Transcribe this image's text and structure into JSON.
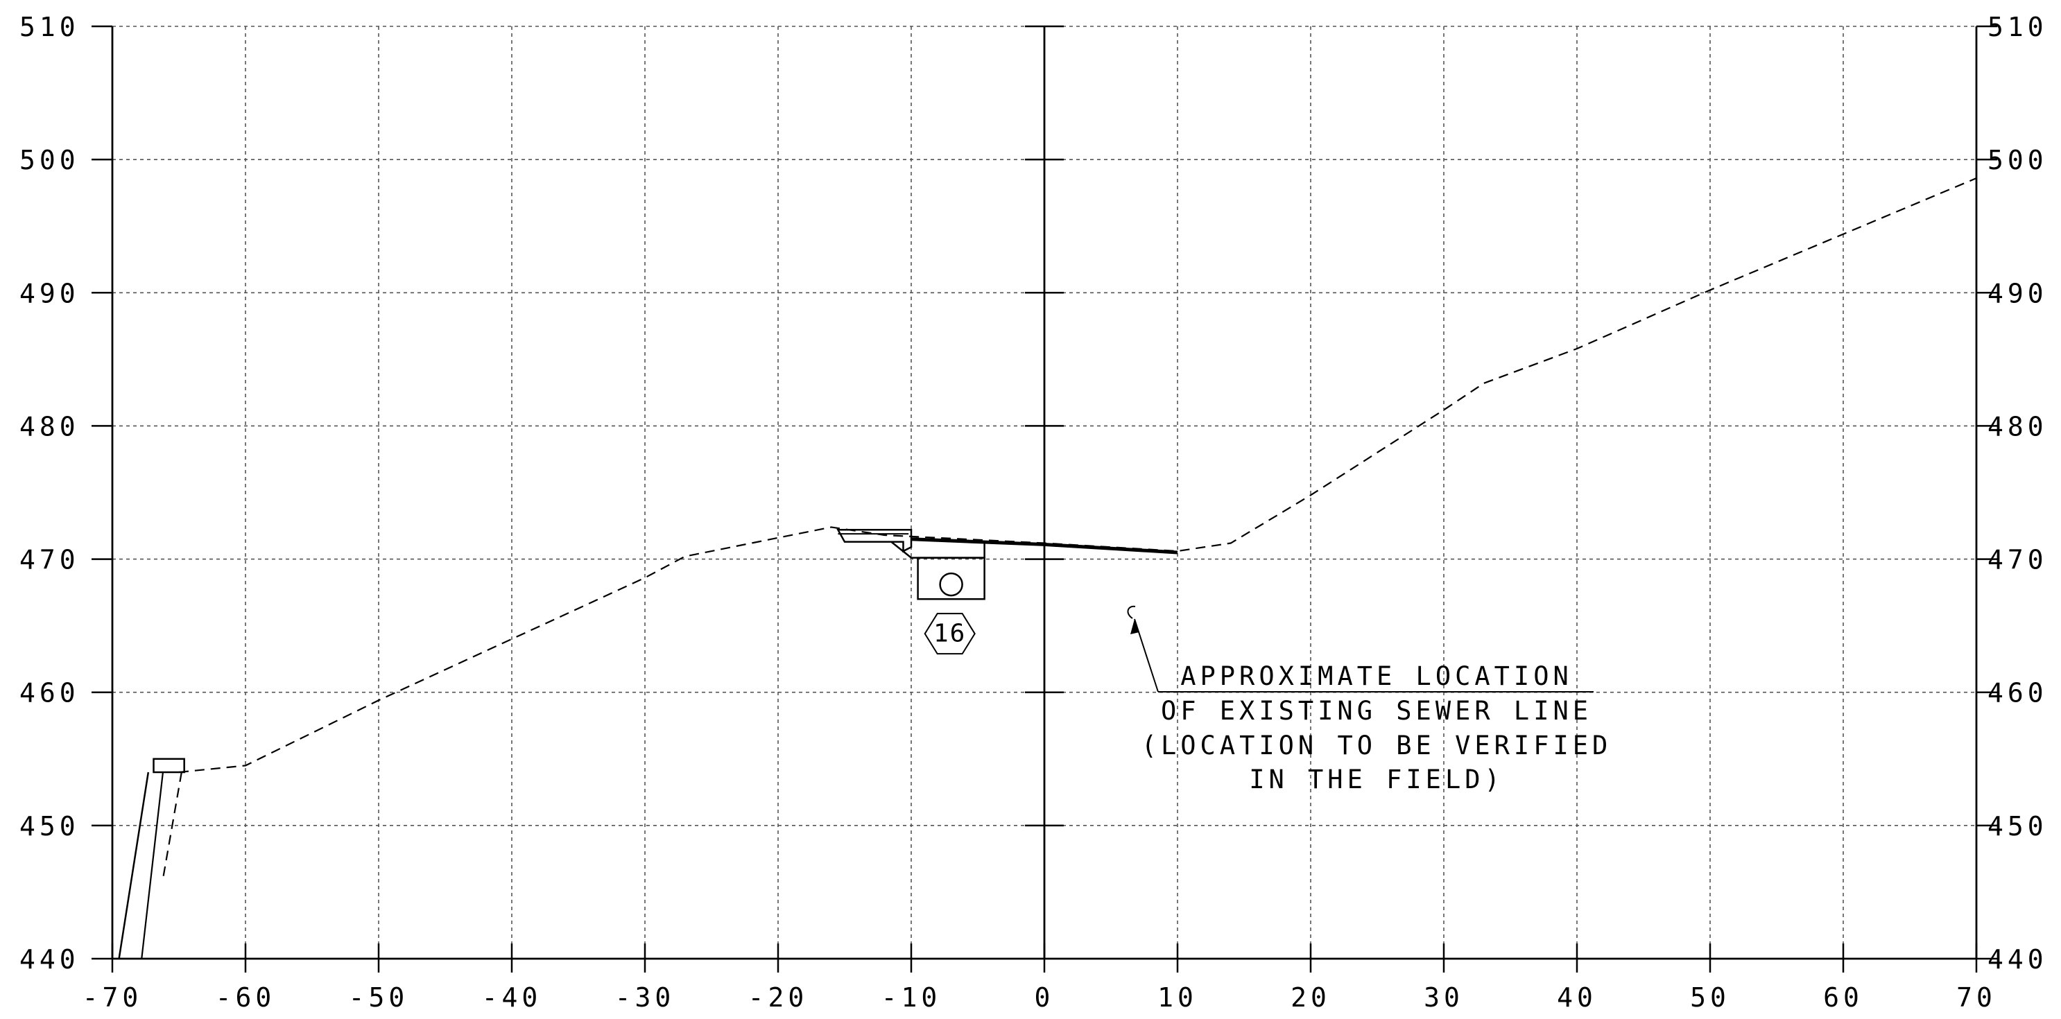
{
  "chart_data": {
    "type": "line",
    "x_ticks": [
      "-70",
      "-60",
      "-50",
      "-40",
      "-30",
      "-20",
      "-10",
      "0",
      "10",
      "20",
      "30",
      "40",
      "50",
      "60",
      "70"
    ],
    "y_ticks": [
      "440",
      "450",
      "460",
      "470",
      "480",
      "490",
      "500",
      "510"
    ],
    "xlim": [
      -70,
      70
    ],
    "ylim": [
      440,
      510
    ],
    "grid": true,
    "series": [
      {
        "style": "dashed",
        "x": [
          -65,
          -60,
          -50,
          -40,
          -30,
          -27,
          -20,
          -16,
          -12,
          0,
          10,
          14,
          20,
          30,
          33,
          40,
          50,
          60,
          70
        ],
        "y": [
          454,
          454.5,
          459.4,
          464,
          468.6,
          470.2,
          471.6,
          472.4,
          471.8,
          471.2,
          470.6,
          471.2,
          474.8,
          481.2,
          483.2,
          485.8,
          490.2,
          494.4,
          498.6
        ]
      },
      {
        "style": "solid",
        "x": [
          -10,
          0,
          10
        ],
        "y": [
          471.5,
          471.1,
          470.5
        ]
      }
    ],
    "marker_label": "16",
    "annotation": {
      "lines": [
        "APPROXIMATE LOCATION",
        "OF EXISTING SEWER LINE",
        "(LOCATION TO BE VERIFIED",
        "IN THE FIELD)"
      ]
    }
  },
  "colors": {
    "background": "#ffffff",
    "ink": "#000000",
    "grid": "#555555"
  }
}
